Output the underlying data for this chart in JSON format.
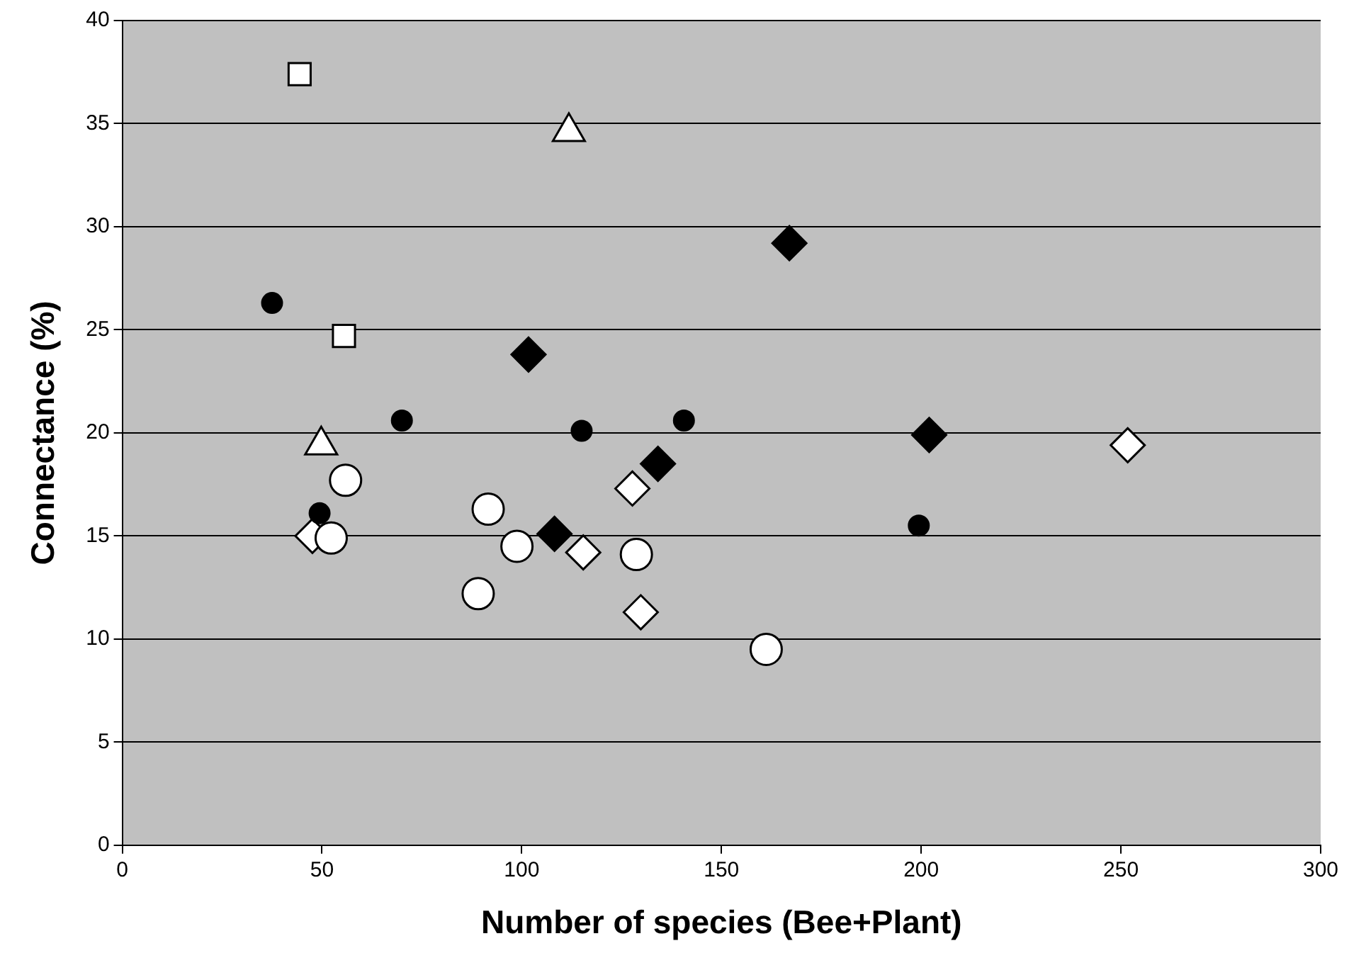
{
  "chart_data": {
    "type": "scatter",
    "xlabel": "Number of species (Bee+Plant)",
    "ylabel": "Connectance (%)",
    "xlim": [
      0,
      300
    ],
    "xticks": [
      0,
      50,
      100,
      150,
      200,
      250,
      300
    ],
    "ylim": [
      0,
      40
    ],
    "yticks": [
      0,
      5,
      10,
      15,
      20,
      25,
      30,
      35,
      40
    ],
    "grid": "y",
    "legend": false,
    "series": [
      {
        "color": "#000000",
        "marker": "circle",
        "x": [
          37.5,
          49.4,
          70,
          115,
          140.6,
          199.4
        ],
        "values": [
          26.3,
          16.1,
          20.6,
          20.1,
          20.6,
          15.5
        ]
      },
      {
        "color": "#ffffff",
        "marker": "square",
        "x": [
          44.4,
          55.5
        ],
        "values": [
          37.4,
          24.7
        ]
      },
      {
        "color": "#ffffff",
        "marker": "triangle",
        "x": [
          111.8,
          49.8
        ],
        "values": [
          34.6,
          19.4
        ]
      },
      {
        "color": "#000000",
        "marker": "diamond",
        "x": [
          167,
          101.7,
          134.1,
          108.2,
          202
        ],
        "values": [
          29.2,
          23.8,
          18.5,
          15.1,
          19.9
        ]
      },
      {
        "color": "#ffffff",
        "marker": "circle",
        "x": [
          55.9,
          52.3,
          91.6,
          98.8,
          89.1,
          128.7,
          161.2
        ],
        "values": [
          17.7,
          14.9,
          16.3,
          14.5,
          12.2,
          14.1,
          9.5
        ]
      },
      {
        "color": "#ffffff",
        "marker": "diamond",
        "x": [
          47.6,
          115.4,
          127.7,
          129.8,
          251.7
        ],
        "values": [
          15.0,
          14.2,
          17.3,
          11.3,
          19.4
        ]
      }
    ]
  }
}
